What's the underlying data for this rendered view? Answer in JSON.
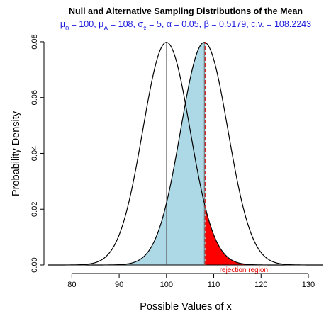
{
  "chart_data": {
    "type": "line",
    "title": "Null and Alternative Sampling Distributions of the Mean",
    "subtitle": {
      "mu0_sym": "μ",
      "mu0_sub": "0",
      "mu0_val": " = 100, ",
      "muA_sym": "μ",
      "muA_sub": "A",
      "muA_val": " = 108, ",
      "sigma_sym": "σ",
      "sigma_sub": "x̄",
      "sigma_val": " = 5, ",
      "rest": "α = 0.05, β = 0.5179, c.v. = 108.2243"
    },
    "xlabel": "Possible Values of x̄",
    "ylabel": "Probability Density",
    "xlim": [
      75,
      133
    ],
    "ylim": [
      0,
      0.081
    ],
    "x_ticks": [
      80,
      90,
      100,
      110,
      120,
      130
    ],
    "y_ticks": [
      0.0,
      0.02,
      0.04,
      0.06,
      0.08
    ],
    "x_tick_labels": [
      "80",
      "90",
      "100",
      "110",
      "120",
      "130"
    ],
    "y_tick_labels": [
      "0.00",
      "0.02",
      "0.04",
      "0.06",
      "0.08"
    ],
    "series": [
      {
        "mean": 100,
        "sd": 5,
        "x_range": [
          75,
          125
        ]
      },
      {
        "mean": 108,
        "sd": 5,
        "x_range": [
          83,
          133
        ]
      }
    ],
    "mean_lines": [
      100,
      108
    ],
    "critical_value": 108.2243,
    "beta_region": {
      "x_from": 83,
      "x_to": 108.2243,
      "color": "#add8e6"
    },
    "alpha_region": {
      "x_from": 108.2243,
      "x_to": 125,
      "color": "#ff0000"
    },
    "critical_line_color": "#d62728",
    "annotation": "rejection region",
    "grid": false
  }
}
